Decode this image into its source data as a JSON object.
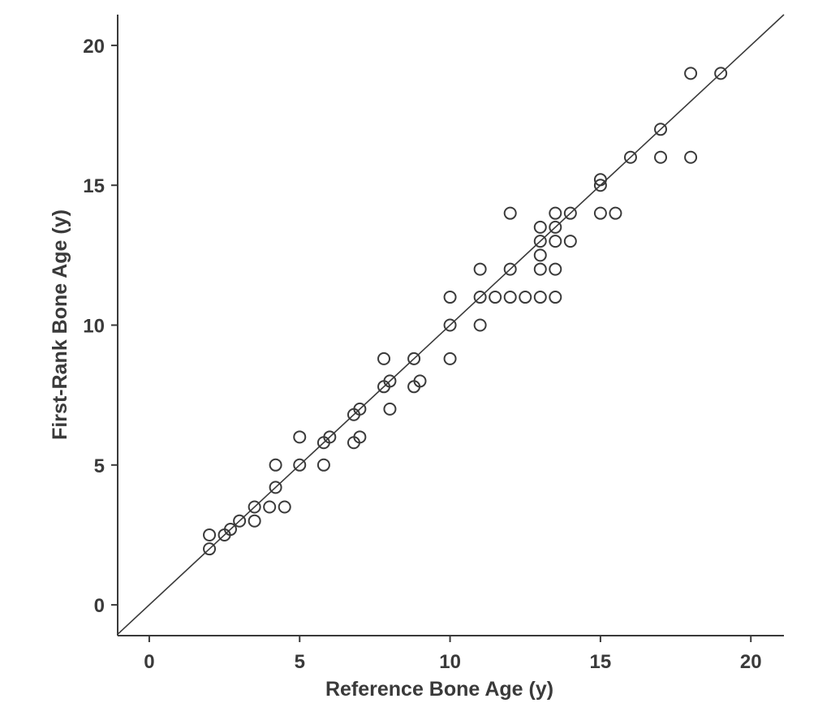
{
  "chart_data": {
    "type": "scatter",
    "title": "",
    "xlabel": "Reference Bone Age (y)",
    "ylabel": "First-Rank Bone Age (y)",
    "xlim": [
      -1.05,
      21.1
    ],
    "ylim": [
      -1.1,
      21.1
    ],
    "xticks": [
      "0",
      "5",
      "10",
      "15",
      "20"
    ],
    "yticks": [
      "0",
      "5",
      "10",
      "15",
      "20"
    ],
    "grid": false,
    "reference_line": "identity (y = x)",
    "color": "#3a3a3a",
    "points": [
      [
        2,
        2
      ],
      [
        2,
        2.5
      ],
      [
        2.5,
        2.5
      ],
      [
        2.7,
        2.7
      ],
      [
        3,
        3
      ],
      [
        3.5,
        3
      ],
      [
        3.5,
        3.5
      ],
      [
        4,
        3.5
      ],
      [
        4.2,
        4.2
      ],
      [
        4.5,
        3.5
      ],
      [
        4.2,
        5
      ],
      [
        5,
        5
      ],
      [
        5,
        6
      ],
      [
        5.8,
        5
      ],
      [
        5.8,
        5.8
      ],
      [
        6,
        6
      ],
      [
        6.8,
        5.8
      ],
      [
        7,
        6
      ],
      [
        6.8,
        6.8
      ],
      [
        7,
        7
      ],
      [
        7.8,
        7.8
      ],
      [
        7.8,
        8.8
      ],
      [
        8,
        8
      ],
      [
        8,
        7
      ],
      [
        8.8,
        7.8
      ],
      [
        9,
        8
      ],
      [
        8.8,
        8.8
      ],
      [
        10,
        8.8
      ],
      [
        10,
        10
      ],
      [
        10,
        11
      ],
      [
        11,
        10
      ],
      [
        11,
        11
      ],
      [
        11,
        12
      ],
      [
        11.5,
        11
      ],
      [
        12,
        11
      ],
      [
        12,
        12
      ],
      [
        12,
        14
      ],
      [
        12.5,
        11
      ],
      [
        13,
        11
      ],
      [
        13,
        12
      ],
      [
        13,
        12.5
      ],
      [
        13,
        13
      ],
      [
        13,
        13.5
      ],
      [
        13.5,
        11
      ],
      [
        13.5,
        12
      ],
      [
        13.5,
        13
      ],
      [
        13.5,
        13.5
      ],
      [
        13.5,
        14
      ],
      [
        14,
        13
      ],
      [
        14,
        14
      ],
      [
        15,
        14
      ],
      [
        15,
        15
      ],
      [
        15,
        15.2
      ],
      [
        15.5,
        14
      ],
      [
        16,
        16
      ],
      [
        17,
        16
      ],
      [
        17,
        17
      ],
      [
        18,
        16
      ],
      [
        18,
        19
      ],
      [
        19,
        19
      ]
    ]
  }
}
